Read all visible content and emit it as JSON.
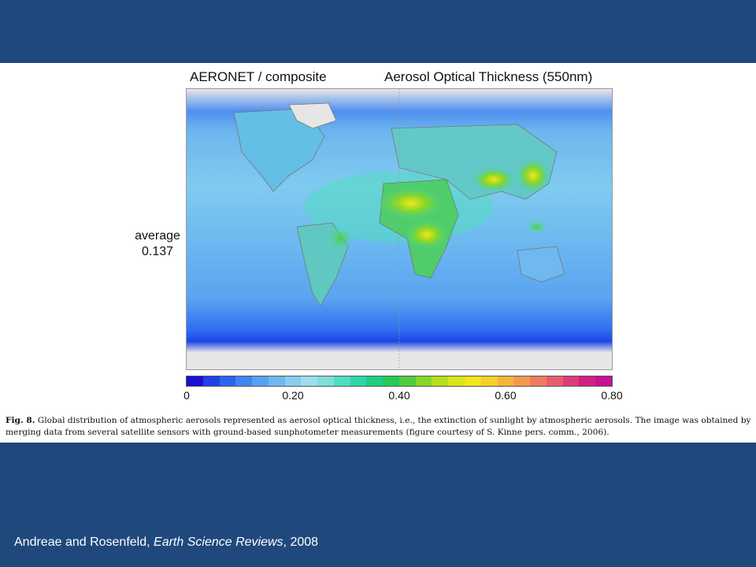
{
  "map": {
    "title_left": "AERONET / composite",
    "title_right": "Aerosol Optical Thickness (550nm)",
    "average_label": "average",
    "average_value": "0.137",
    "colorbar": {
      "ticks": [
        "0",
        "0.20",
        "0.40",
        "0.60",
        "0.80"
      ],
      "min": 0,
      "max": 0.8,
      "colors": [
        "#1a0fd6",
        "#1f3fe8",
        "#2b64f0",
        "#3f86f2",
        "#55a2f2",
        "#6fb9f0",
        "#89cdf0",
        "#9fdcee",
        "#7fe0d8",
        "#52dcc0",
        "#2fd6a6",
        "#1ccf82",
        "#27c95a",
        "#4fcd3c",
        "#86d62a",
        "#b6df1e",
        "#dbe618",
        "#f2e61c",
        "#f6d028",
        "#f6b53a",
        "#f39a4e",
        "#ee7c60",
        "#e65c6c",
        "#dd3c78",
        "#d21f84",
        "#c9108e"
      ]
    }
  },
  "caption": {
    "label": "Fig. 8.",
    "text": " Global distribution of atmospheric aerosols represented as aerosol optical thickness, i.e., the extinction of sunlight by atmospheric aerosols. The image was obtained by merging data from several satellite sensors with ground-based sunphotometer measurements (figure courtesy of S. Kinne pers. comm., 2006)."
  },
  "footer": {
    "authors": "Andreae and Rosenfeld,",
    "journal": "Earth Science Reviews",
    "year": ", 2008"
  }
}
